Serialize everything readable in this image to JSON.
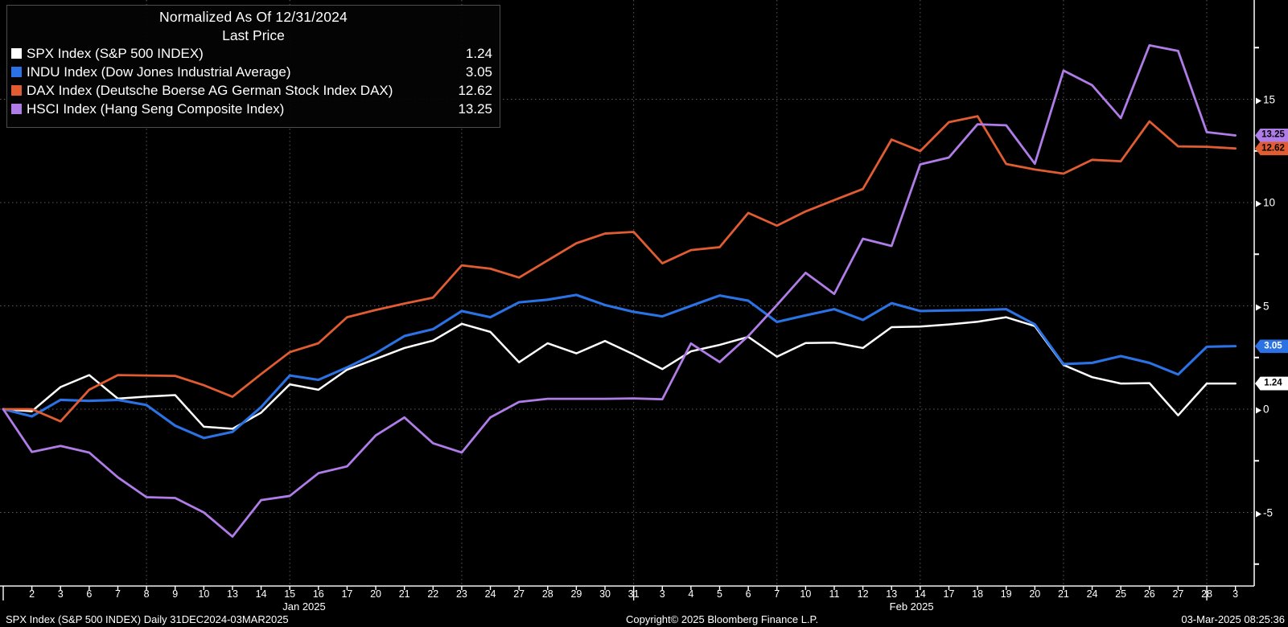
{
  "legend": {
    "title": "Normalized As Of 12/31/2024",
    "subtitle": "Last Price",
    "entries": [
      {
        "name": "SPX Index (S&P 500 INDEX)",
        "last": "1.24",
        "color": "#ffffff",
        "badge_text": "#000000"
      },
      {
        "name": "INDU Index (Dow Jones Industrial Average)",
        "last": "3.05",
        "color": "#2b72e4",
        "badge_text": "#ffffff"
      },
      {
        "name": "DAX Index (Deutsche Boerse AG German Stock Index DAX)",
        "last": "12.62",
        "color": "#e15c32",
        "badge_text": "#000000"
      },
      {
        "name": "HSCI Index (Hang Seng Composite Index)",
        "last": "13.25",
        "color": "#b07ce8",
        "badge_text": "#000000"
      }
    ]
  },
  "chart_data": {
    "type": "line",
    "title": "Normalized As Of 12/31/2024",
    "subtitle": "Last Price",
    "x_dates": [
      "Dec 31",
      "Jan 2",
      "Jan 3",
      "Jan 6",
      "Jan 7",
      "Jan 8",
      "Jan 9",
      "Jan 10",
      "Jan 13",
      "Jan 14",
      "Jan 15",
      "Jan 16",
      "Jan 17",
      "Jan 20",
      "Jan 21",
      "Jan 22",
      "Jan 23",
      "Jan 24",
      "Jan 27",
      "Jan 28",
      "Jan 29",
      "Jan 30",
      "Jan 31",
      "Feb 3",
      "Feb 4",
      "Feb 5",
      "Feb 6",
      "Feb 7",
      "Feb 10",
      "Feb 11",
      "Feb 12",
      "Feb 13",
      "Feb 14",
      "Feb 17",
      "Feb 18",
      "Feb 19",
      "Feb 20",
      "Feb 21",
      "Feb 24",
      "Feb 25",
      "Feb 26",
      "Feb 27",
      "Feb 28",
      "Mar 3"
    ],
    "tick_labels": [
      "",
      "2",
      "3",
      "6",
      "7",
      "8",
      "9",
      "10",
      "13",
      "14",
      "15",
      "16",
      "17",
      "20",
      "21",
      "22",
      "23",
      "24",
      "27",
      "28",
      "29",
      "30",
      "31",
      "3",
      "4",
      "5",
      "6",
      "7",
      "10",
      "11",
      "12",
      "13",
      "14",
      "17",
      "18",
      "19",
      "20",
      "21",
      "24",
      "25",
      "26",
      "27",
      "28",
      "3"
    ],
    "month_labels": [
      {
        "label": "Jan 2025",
        "index": 10.5
      },
      {
        "label": "Feb 2025",
        "index": 31.7
      }
    ],
    "month_boundary_indices": [
      0,
      22,
      42
    ],
    "grid_x_indices": [
      5,
      10,
      16,
      22,
      27,
      32,
      37,
      42
    ],
    "y_major_ticks": [
      15,
      10,
      5,
      0,
      -5
    ],
    "y_minor_ticks": [
      17.5,
      12.5,
      7.5,
      2.5,
      -2.5,
      -7.5
    ],
    "ylim": [
      -8.5,
      19.8
    ],
    "series": [
      {
        "name": "SPX Index (S&P 500 INDEX)",
        "color": "#ffffff",
        "width": 2.5,
        "values": [
          0,
          -0.1,
          1.07,
          1.65,
          0.51,
          0.61,
          0.68,
          -0.85,
          -0.95,
          -0.17,
          1.2,
          0.94,
          1.91,
          2.43,
          2.96,
          3.32,
          4.13,
          3.74,
          2.27,
          3.19,
          2.7,
          3.3,
          2.65,
          1.94,
          2.8,
          3.11,
          3.5,
          2.54,
          3.2,
          3.22,
          2.96,
          3.97,
          4.0,
          4.1,
          4.23,
          4.45,
          4.02,
          2.14,
          1.55,
          1.24,
          1.26,
          -0.3,
          1.24,
          1.24
        ]
      },
      {
        "name": "INDU Index (Dow Jones Industrial Average)",
        "color": "#2b72e4",
        "width": 3.1,
        "values": [
          0,
          -0.35,
          0.45,
          0.4,
          0.45,
          0.2,
          -0.8,
          -1.4,
          -1.1,
          0.1,
          1.63,
          1.42,
          2.02,
          2.7,
          3.54,
          3.87,
          4.75,
          4.45,
          5.17,
          5.3,
          5.53,
          5.04,
          4.71,
          4.49,
          5.0,
          5.5,
          5.25,
          4.22,
          4.54,
          4.84,
          4.32,
          5.13,
          4.75,
          4.78,
          4.8,
          4.84,
          4.1,
          2.18,
          2.24,
          2.57,
          2.24,
          1.68,
          3.02,
          3.05
        ]
      },
      {
        "name": "DAX Index (Deutsche Boerse AG German Stock Index DAX)",
        "color": "#e15c32",
        "width": 2.8,
        "values": [
          0,
          0.0,
          -0.59,
          0.94,
          1.65,
          1.63,
          1.61,
          1.16,
          0.6,
          1.7,
          2.76,
          3.19,
          4.45,
          4.8,
          5.11,
          5.4,
          6.96,
          6.8,
          6.37,
          7.2,
          8.03,
          8.5,
          8.58,
          7.06,
          7.7,
          7.84,
          9.5,
          8.88,
          9.57,
          10.12,
          10.66,
          13.05,
          12.49,
          13.89,
          14.18,
          11.87,
          11.6,
          11.4,
          12.07,
          12.0,
          13.93,
          12.72,
          12.7,
          12.62
        ]
      },
      {
        "name": "HSCI Index (Hang Seng Composite Index)",
        "color": "#b07ce8",
        "width": 2.8,
        "values": [
          0,
          -2.07,
          -1.78,
          -2.1,
          -3.3,
          -4.26,
          -4.3,
          -5.0,
          -6.17,
          -4.4,
          -4.2,
          -3.1,
          -2.77,
          -1.27,
          -0.4,
          -1.65,
          -2.1,
          -0.4,
          0.35,
          0.5,
          0.5,
          0.5,
          0.52,
          0.48,
          3.18,
          2.28,
          3.54,
          5.04,
          6.6,
          5.58,
          8.25,
          7.9,
          11.85,
          12.18,
          13.79,
          13.74,
          11.88,
          16.39,
          15.68,
          14.09,
          17.61,
          17.34,
          13.41,
          13.25
        ]
      }
    ],
    "grid_color": "#5c5c5c",
    "axis_color": "#f0f0f0"
  },
  "footer": {
    "left": "SPX Index (S&P 500 INDEX)  Daily 31DEC2024-03MAR2025",
    "center": "Copyright© 2025 Bloomberg Finance L.P.",
    "right": "03-Mar-2025 08:25:36"
  }
}
